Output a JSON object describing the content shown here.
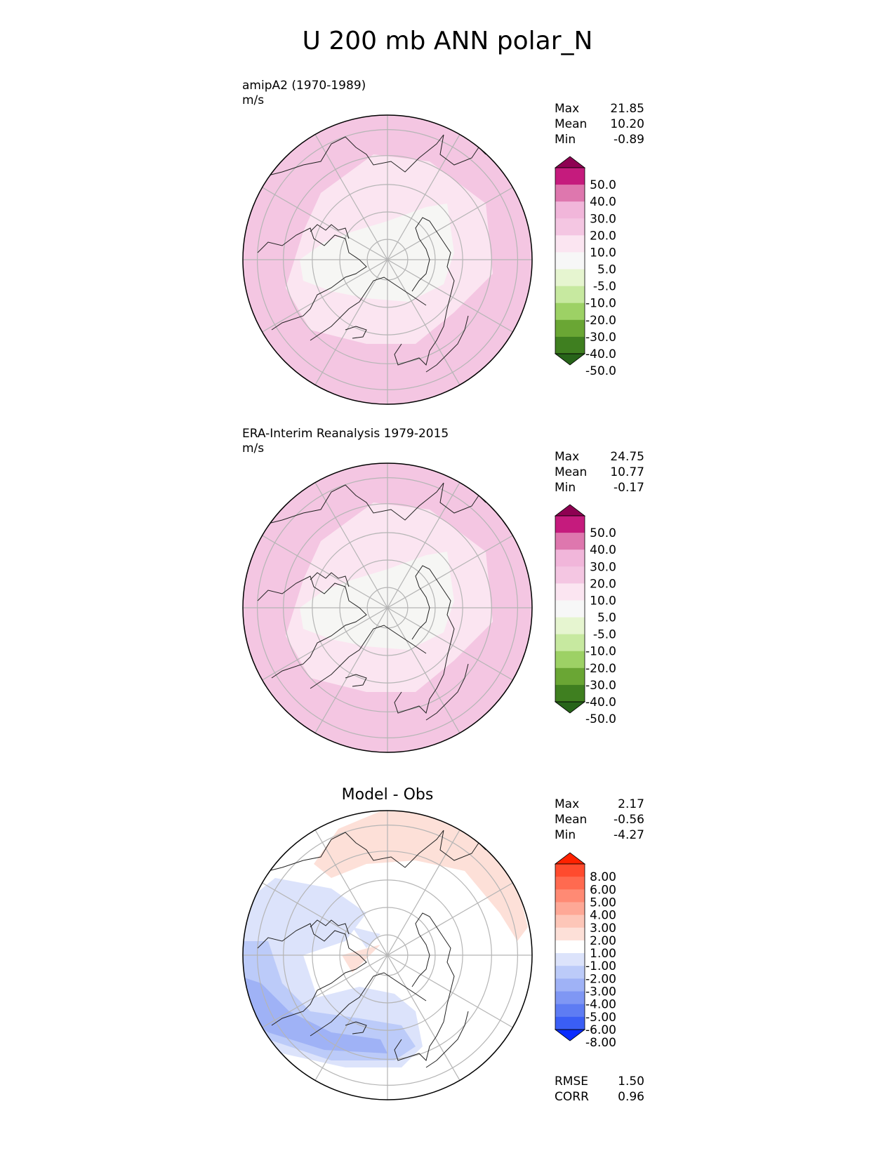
{
  "title": "U 200 mb ANN polar_N",
  "panels": [
    {
      "label": "amipA2 (1970-1989)",
      "units": "m/s",
      "stats": [
        {
          "name": "Max",
          "value": "21.85"
        },
        {
          "name": "Mean",
          "value": "10.20"
        },
        {
          "name": "Min",
          "value": "-0.89"
        }
      ]
    },
    {
      "label": "ERA-Interim Reanalysis 1979-2015",
      "units": "m/s",
      "stats": [
        {
          "name": "Max",
          "value": "24.75"
        },
        {
          "name": "Mean",
          "value": "10.77"
        },
        {
          "name": "Min",
          "value": "-0.17"
        }
      ]
    },
    {
      "label": "Model - Obs",
      "units": "",
      "stats": [
        {
          "name": "Max",
          "value": "2.17"
        },
        {
          "name": "Mean",
          "value": "-0.56"
        },
        {
          "name": "Min",
          "value": "-4.27"
        }
      ],
      "metrics": [
        {
          "name": "RMSE",
          "value": "1.50"
        },
        {
          "name": "CORR",
          "value": "0.96"
        }
      ]
    }
  ],
  "chart_data": [
    {
      "type": "heatmap",
      "projection": "north polar stereographic",
      "title": "amipA2 (1970-1989)",
      "units": "m/s",
      "colorbar": {
        "ticks": [
          "50.0",
          "40.0",
          "30.0",
          "20.0",
          "10.0",
          "5.0",
          "-5.0",
          "-10.0",
          "-20.0",
          "-30.0",
          "-40.0",
          "-50.0"
        ],
        "colors": [
          "#8e0152",
          "#c51b7d",
          "#de77ae",
          "#f1b6da",
          "#f4c6e2",
          "#fbe5f1",
          "#f7f7f7",
          "#e6f5d0",
          "#c7e9a0",
          "#9dd165",
          "#6aa634",
          "#3f7f20",
          "#276419"
        ],
        "extend": "both"
      },
      "regions": {
        "pole": "#f6f6f4",
        "inner": "#fbe5f1",
        "outer": "#f4c6e2",
        "edge": "#e7a0cc"
      }
    },
    {
      "type": "heatmap",
      "projection": "north polar stereographic",
      "title": "ERA-Interim Reanalysis 1979-2015",
      "units": "m/s",
      "colorbar": {
        "ticks": [
          "50.0",
          "40.0",
          "30.0",
          "20.0",
          "10.0",
          "5.0",
          "-5.0",
          "-10.0",
          "-20.0",
          "-30.0",
          "-40.0",
          "-50.0"
        ],
        "colors": [
          "#8e0152",
          "#c51b7d",
          "#de77ae",
          "#f1b6da",
          "#f4c6e2",
          "#fbe5f1",
          "#f7f7f7",
          "#e6f5d0",
          "#c7e9a0",
          "#9dd165",
          "#6aa634",
          "#3f7f20",
          "#276419"
        ],
        "extend": "both"
      },
      "regions": {
        "pole": "#f6f6f4",
        "inner": "#fbe5f1",
        "outer": "#f4c6e2",
        "edge": "#e7a0cc"
      }
    },
    {
      "type": "heatmap",
      "projection": "north polar stereographic",
      "title": "Model - Obs",
      "units": "",
      "colorbar": {
        "ticks": [
          "8.00",
          "6.00",
          "5.00",
          "4.00",
          "3.00",
          "2.00",
          "1.00",
          "-1.00",
          "-2.00",
          "-3.00",
          "-4.00",
          "-5.00",
          "-6.00",
          "-8.00"
        ],
        "colors": [
          "#ff2200",
          "#ff4b2e",
          "#ff6a50",
          "#ff8a74",
          "#fea896",
          "#fdc6b8",
          "#fde0d8",
          "#ffffff",
          "#dce3fb",
          "#bccbf9",
          "#9fb2f6",
          "#7f97f4",
          "#5e7cf3",
          "#3a5ef5",
          "#0a2cff"
        ],
        "extend": "both"
      },
      "regions": {
        "background": "#ffffff",
        "positive": "#fde0d8",
        "negative_light": "#dce3fb",
        "negative_mid": "#bccbf9",
        "negative_strong": "#9fb2f6"
      }
    }
  ]
}
